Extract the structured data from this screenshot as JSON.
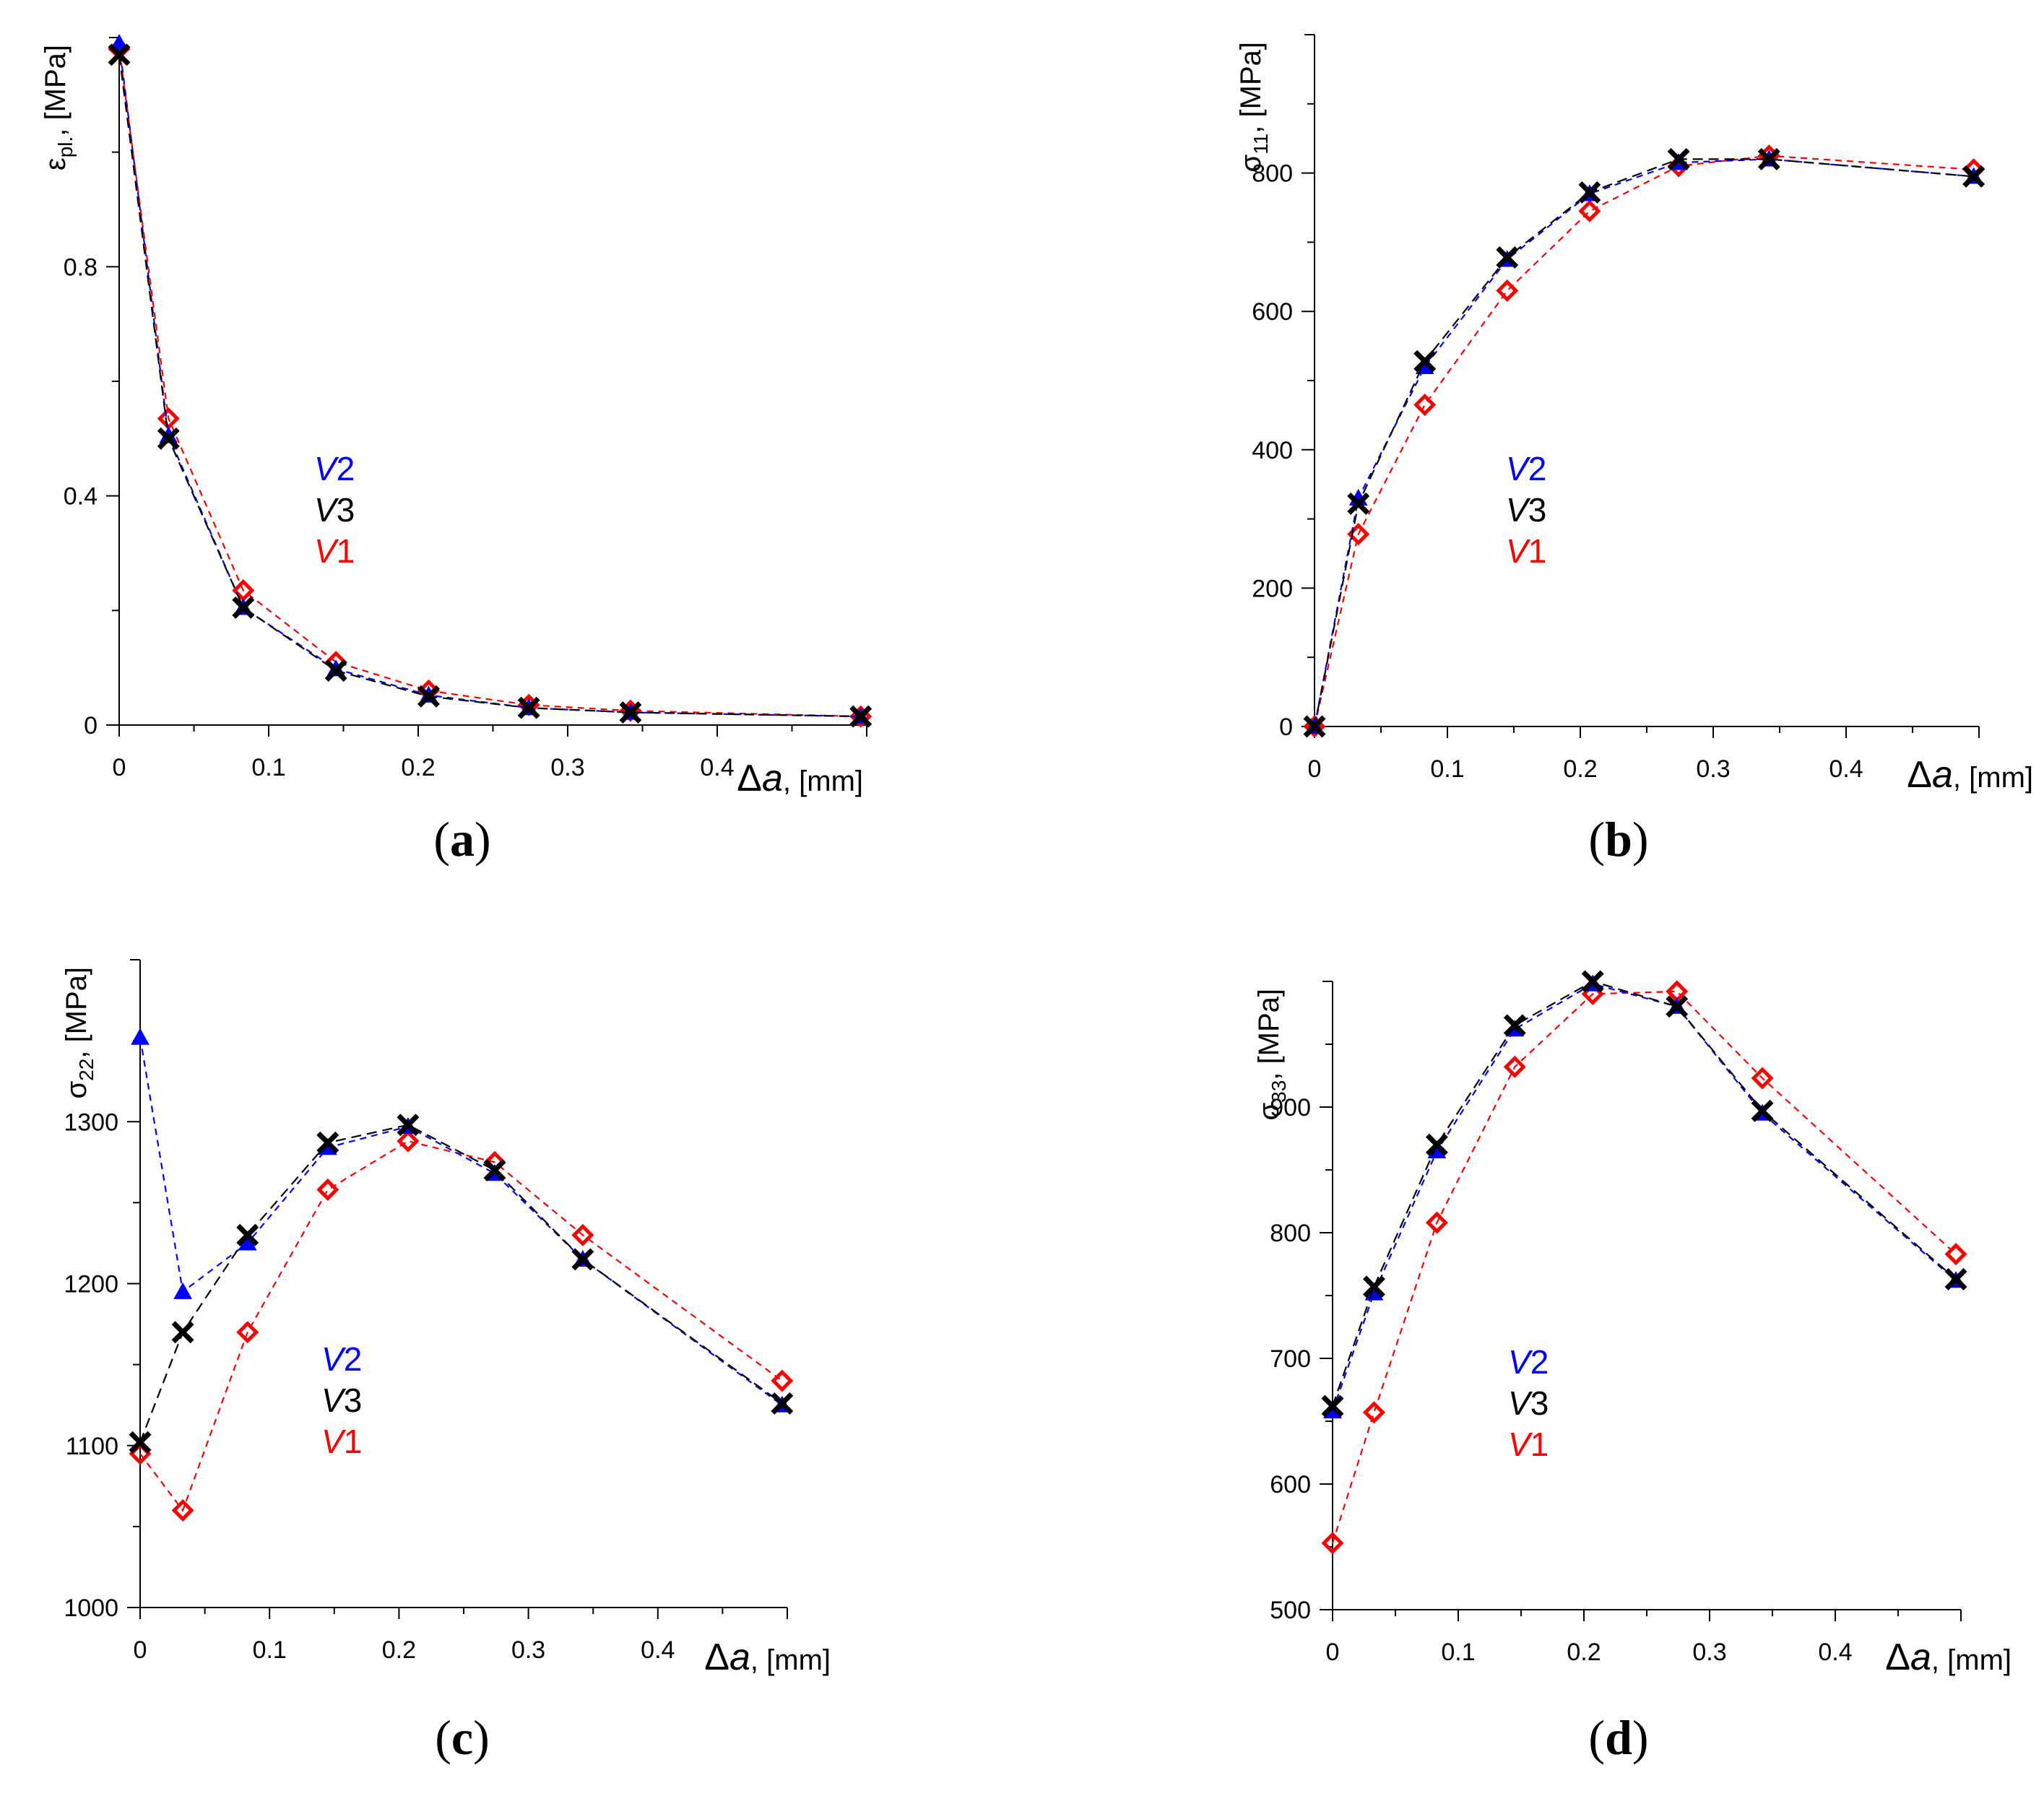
{
  "colors": {
    "V1": "#ff0000",
    "V2": "#0000ff",
    "V3": "#000000",
    "axis": "#000000"
  },
  "chart_data": [
    {
      "id": "a",
      "type": "line",
      "caption": {
        "open": "(",
        "letter": "a",
        "close": ")"
      },
      "ylabel": {
        "base": "ε",
        "sub": "pl.",
        "unit": ", [MPa]"
      },
      "xlabel": {
        "base": "Δ",
        "var": "a",
        "unit": ", [mm]"
      },
      "xlim": [
        0,
        0.5
      ],
      "ylim": [
        0,
        1.2
      ],
      "xticks": [
        0,
        0.1,
        0.2,
        0.3,
        0.4
      ],
      "xtick_labels": [
        "0",
        "0.1",
        "0.2",
        "0.3",
        "0.4"
      ],
      "yticks": [
        0,
        0.4,
        0.8
      ],
      "ytick_labels": [
        "0",
        "0.4",
        "0.8"
      ],
      "yminor": [
        0.2,
        0.6,
        1.0
      ],
      "legend": [
        {
          "key": "V2",
          "var": "V",
          "num": "2"
        },
        {
          "key": "V3",
          "var": "V",
          "num": "3"
        },
        {
          "key": "V1",
          "var": "V",
          "num": "1"
        }
      ],
      "series": [
        {
          "key": "V2",
          "marker": "triangle",
          "x": [
            0,
            0.033,
            0.083,
            0.145,
            0.207,
            0.274,
            0.342,
            0.496
          ],
          "y": [
            1.19,
            0.505,
            0.205,
            0.098,
            0.052,
            0.03,
            0.022,
            0.015
          ]
        },
        {
          "key": "V3",
          "marker": "cross",
          "x": [
            0,
            0.033,
            0.083,
            0.145,
            0.207,
            0.274,
            0.342,
            0.496
          ],
          "y": [
            1.17,
            0.5,
            0.205,
            0.095,
            0.05,
            0.03,
            0.022,
            0.015
          ]
        },
        {
          "key": "V1",
          "marker": "diamond",
          "x": [
            0,
            0.033,
            0.083,
            0.145,
            0.207,
            0.274,
            0.342,
            0.496
          ],
          "y": [
            1.18,
            0.535,
            0.235,
            0.11,
            0.06,
            0.035,
            0.025,
            0.015
          ]
        }
      ]
    },
    {
      "id": "b",
      "type": "line",
      "caption": {
        "open": "(",
        "letter": "b",
        "close": ")"
      },
      "ylabel": {
        "base": "σ",
        "sub": "11",
        "unit": ", [MPa]"
      },
      "xlabel": {
        "base": "Δ",
        "var": "a",
        "unit": ", [mm]"
      },
      "xlim": [
        0,
        0.5
      ],
      "ylim": [
        0,
        1000
      ],
      "xticks": [
        0,
        0.1,
        0.2,
        0.3,
        0.4
      ],
      "xtick_labels": [
        "0",
        "0.1",
        "0.2",
        "0.3",
        "0.4"
      ],
      "yticks": [
        0,
        200,
        400,
        600,
        800
      ],
      "ytick_labels": [
        "0",
        "200",
        "400",
        "600",
        "800"
      ],
      "yminor": [
        100,
        300,
        500,
        700,
        900
      ],
      "legend": [
        {
          "key": "V2",
          "var": "V",
          "num": "2"
        },
        {
          "key": "V3",
          "var": "V",
          "num": "3"
        },
        {
          "key": "V1",
          "var": "V",
          "num": "1"
        }
      ],
      "series": [
        {
          "key": "V2",
          "marker": "triangle",
          "x": [
            0,
            0.033,
            0.083,
            0.145,
            0.207,
            0.274,
            0.342,
            0.496
          ],
          "y": [
            0,
            330,
            520,
            675,
            770,
            815,
            820,
            795
          ]
        },
        {
          "key": "V3",
          "marker": "cross",
          "x": [
            0,
            0.033,
            0.083,
            0.145,
            0.207,
            0.274,
            0.342,
            0.496
          ],
          "y": [
            0,
            322,
            528,
            678,
            772,
            820,
            820,
            795
          ]
        },
        {
          "key": "V1",
          "marker": "diamond",
          "x": [
            0,
            0.033,
            0.083,
            0.145,
            0.207,
            0.274,
            0.342,
            0.496
          ],
          "y": [
            0,
            278,
            465,
            630,
            745,
            810,
            825,
            805
          ]
        }
      ]
    },
    {
      "id": "c",
      "type": "line",
      "caption": {
        "open": "(",
        "letter": "c",
        "close": ")"
      },
      "ylabel": {
        "base": "σ",
        "sub": "22",
        "unit": ", [MPa]"
      },
      "xlabel": {
        "base": "Δ",
        "var": "a",
        "unit": ", [mm]"
      },
      "xlim": [
        0,
        0.5
      ],
      "ylim": [
        1000,
        1400
      ],
      "xticks": [
        0,
        0.1,
        0.2,
        0.3,
        0.4
      ],
      "xtick_labels": [
        "0",
        "0.1",
        "0.2",
        "0.3",
        "0.4"
      ],
      "yticks": [
        1000,
        1100,
        1200,
        1300
      ],
      "ytick_labels": [
        "1000",
        "1100",
        "1200",
        "1300"
      ],
      "yminor": [
        1050,
        1150,
        1250,
        1350
      ],
      "legend": [
        {
          "key": "V2",
          "var": "V",
          "num": "2"
        },
        {
          "key": "V3",
          "var": "V",
          "num": "3"
        },
        {
          "key": "V1",
          "var": "V",
          "num": "1"
        }
      ],
      "series": [
        {
          "key": "V2",
          "marker": "triangle",
          "x": [
            0,
            0.033,
            0.083,
            0.145,
            0.207,
            0.274,
            0.342,
            0.496
          ],
          "y": [
            1352,
            1195,
            1225,
            1284,
            1297,
            1268,
            1215,
            1125
          ]
        },
        {
          "key": "V3",
          "marker": "cross",
          "x": [
            0,
            0.033,
            0.083,
            0.145,
            0.207,
            0.274,
            0.342,
            0.496
          ],
          "y": [
            1102,
            1170,
            1230,
            1287,
            1298,
            1270,
            1215,
            1126
          ]
        },
        {
          "key": "V1",
          "marker": "diamond",
          "x": [
            0,
            0.033,
            0.083,
            0.145,
            0.207,
            0.274,
            0.342,
            0.496
          ],
          "y": [
            1095,
            1060,
            1170,
            1258,
            1288,
            1275,
            1230,
            1140
          ]
        }
      ]
    },
    {
      "id": "d",
      "type": "line",
      "caption": {
        "open": "(",
        "letter": "d",
        "close": ")"
      },
      "ylabel": {
        "base": "σ",
        "sub": "33",
        "unit": ", [MPa]"
      },
      "xlabel": {
        "base": "Δ",
        "var": "a",
        "unit": ", [mm]"
      },
      "xlim": [
        0,
        0.5
      ],
      "ylim": [
        500,
        1000
      ],
      "xticks": [
        0,
        0.1,
        0.2,
        0.3,
        0.4
      ],
      "xtick_labels": [
        "0",
        "0.1",
        "0.2",
        "0.3",
        "0.4"
      ],
      "yticks": [
        500,
        600,
        700,
        800,
        900
      ],
      "ytick_labels": [
        "500",
        "600",
        "700",
        "800",
        "900"
      ],
      "yminor": [
        550,
        650,
        750,
        850,
        950
      ],
      "legend": [
        {
          "key": "V2",
          "var": "V",
          "num": "2"
        },
        {
          "key": "V3",
          "var": "V",
          "num": "3"
        },
        {
          "key": "V1",
          "var": "V",
          "num": "1"
        }
      ],
      "series": [
        {
          "key": "V2",
          "marker": "triangle",
          "x": [
            0,
            0.033,
            0.083,
            0.145,
            0.207,
            0.274,
            0.342,
            0.496
          ],
          "y": [
            658,
            752,
            865,
            962,
            998,
            980,
            895,
            762
          ]
        },
        {
          "key": "V3",
          "marker": "cross",
          "x": [
            0,
            0.033,
            0.083,
            0.145,
            0.207,
            0.274,
            0.342,
            0.496
          ],
          "y": [
            662,
            757,
            870,
            965,
            1000,
            980,
            897,
            763
          ]
        },
        {
          "key": "V1",
          "marker": "diamond",
          "x": [
            0,
            0.033,
            0.083,
            0.145,
            0.207,
            0.274,
            0.342,
            0.496
          ],
          "y": [
            553,
            657,
            808,
            932,
            990,
            992,
            923,
            783
          ]
        }
      ]
    }
  ]
}
